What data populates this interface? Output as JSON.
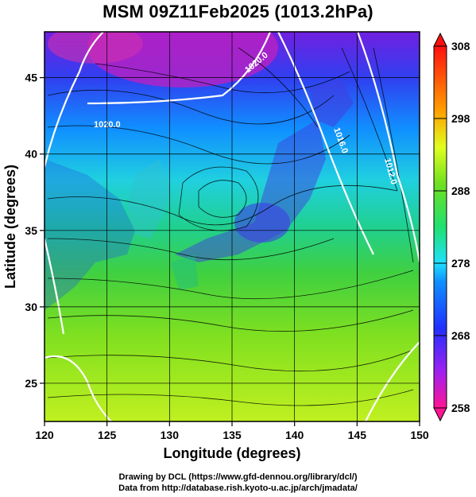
{
  "title": "MSM 09Z11Feb2025 (1013.2hPa)",
  "map": {
    "lon_range": [
      120,
      150
    ],
    "lat_range": [
      22.5,
      48
    ],
    "x_ticks": [
      "120",
      "125",
      "130",
      "135",
      "140",
      "145",
      "150"
    ],
    "y_ticks": [
      "25",
      "30",
      "35",
      "40",
      "45"
    ],
    "xlabel": "Longitude (degrees)",
    "ylabel": "Latitude (degrees)",
    "grid": true,
    "contour_labels": [
      "1020.0",
      "1020.0",
      "1016.0",
      "1012.0"
    ],
    "field": "temperature (K) with streamlines and pressure contours"
  },
  "colorbar": {
    "min": 258,
    "max": 308,
    "labels": [
      "308",
      "298",
      "288",
      "278",
      "268",
      "258"
    ],
    "colors": [
      "#ff1493",
      "#a020f0",
      "#3050ff",
      "#20e0ff",
      "#20e070",
      "#e0ff20",
      "#ff7f00",
      "#ff1010"
    ]
  },
  "credits": {
    "line1": "Drawing by DCL (https://www.gfd-dennou.org/library/dcl/)",
    "line2": "Data from http://database.rish.kyoto-u.ac.jp/arch/jmadata/"
  }
}
